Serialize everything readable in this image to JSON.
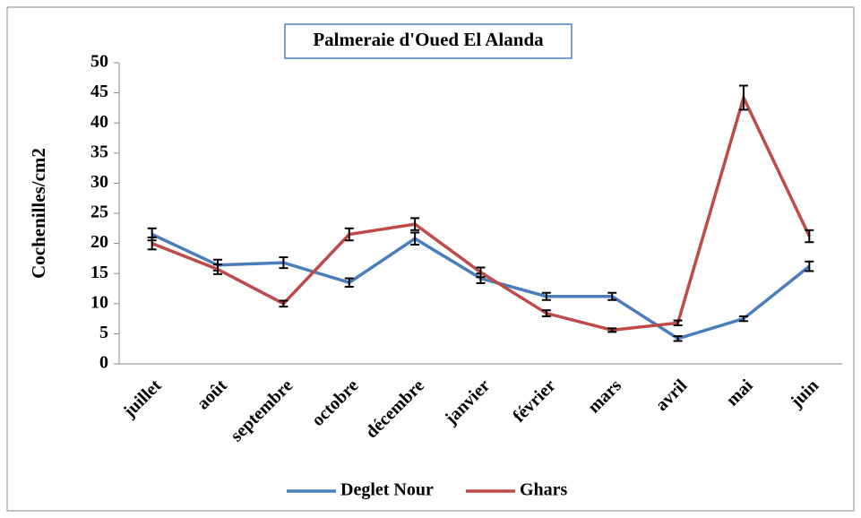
{
  "chart_data": {
    "type": "line",
    "title": "Palmeraie d'Oued El Alanda",
    "y_label": "Cochenilles/cm2",
    "categories": [
      "juillet",
      "août",
      "septembre",
      "octobre",
      "décembre",
      "janvier",
      "février",
      "mars",
      "avril",
      "mai",
      "juin"
    ],
    "series": [
      {
        "name": "Deglet Nour",
        "color": "#4a7ebb",
        "values": [
          21.5,
          16.4,
          16.8,
          13.5,
          20.8,
          14.2,
          11.2,
          11.2,
          4.2,
          7.5,
          16.2
        ],
        "errors": [
          1,
          0.9,
          0.9,
          0.7,
          1,
          0.8,
          0.6,
          0.6,
          0.4,
          0.4,
          0.8
        ]
      },
      {
        "name": "Ghars",
        "color": "#be4b48",
        "values": [
          20.0,
          15.7,
          10.0,
          21.5,
          23.2,
          15.2,
          8.4,
          5.6,
          6.8,
          44.2,
          21.2
        ],
        "errors": [
          1,
          0.8,
          0.5,
          1,
          1,
          0.8,
          0.5,
          0.3,
          0.4,
          2,
          1
        ]
      }
    ],
    "ylim": [
      0,
      50
    ],
    "yticks": [
      0,
      5,
      10,
      15,
      20,
      25,
      30,
      35,
      40,
      45,
      50
    ],
    "legend": "bottom"
  }
}
